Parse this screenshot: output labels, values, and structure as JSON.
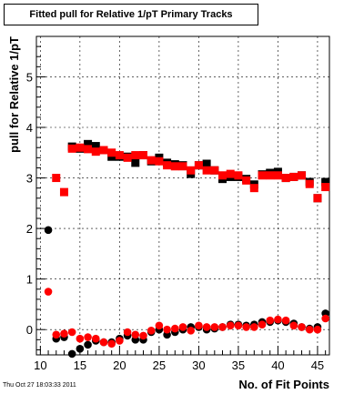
{
  "chart_data": {
    "type": "scatter",
    "title": "Fitted pull for Relative 1/pT Primary Tracks",
    "xlabel": "No. of Fit Points",
    "ylabel": "pull for Relative 1/pT",
    "xlim": [
      9.5,
      46.5
    ],
    "ylim": [
      -0.5,
      5.8
    ],
    "x_ticks": [
      10,
      15,
      20,
      25,
      30,
      35,
      40,
      45
    ],
    "y_ticks": [
      0,
      1,
      2,
      3,
      4,
      5
    ],
    "grid": true,
    "series": [
      {
        "color": "#000000",
        "marker": "square",
        "x": [
          14,
          15,
          16,
          17,
          18,
          19,
          20,
          21,
          22,
          23,
          24,
          25,
          26,
          27,
          28,
          29,
          30,
          31,
          32,
          33,
          34,
          35,
          36,
          37,
          38,
          39,
          40,
          41,
          42,
          43,
          44,
          45,
          46
        ],
        "values": [
          3.62,
          3.58,
          3.67,
          3.63,
          3.55,
          3.42,
          3.42,
          3.42,
          3.3,
          3.45,
          3.33,
          3.4,
          3.3,
          3.27,
          3.25,
          3.08,
          3.25,
          3.28,
          3.15,
          2.98,
          3.02,
          3.02,
          2.98,
          2.87,
          3.07,
          3.1,
          3.12,
          3.0,
          3.02,
          3.05,
          2.92,
          2.6,
          2.92
        ]
      },
      {
        "color": "#ff0000",
        "marker": "square",
        "x": [
          12,
          13,
          14,
          15,
          16,
          17,
          18,
          19,
          20,
          21,
          22,
          23,
          24,
          25,
          26,
          27,
          28,
          29,
          30,
          31,
          32,
          33,
          34,
          35,
          36,
          37,
          38,
          39,
          40,
          41,
          42,
          43,
          44,
          45,
          46
        ],
        "values": [
          3.0,
          2.72,
          3.58,
          3.6,
          3.57,
          3.52,
          3.55,
          3.5,
          3.45,
          3.4,
          3.45,
          3.45,
          3.35,
          3.33,
          3.25,
          3.23,
          3.23,
          3.15,
          3.25,
          3.15,
          3.15,
          3.05,
          3.08,
          3.05,
          2.95,
          2.8,
          3.05,
          3.05,
          3.05,
          3.0,
          3.02,
          3.05,
          2.88,
          2.6,
          2.82
        ]
      },
      {
        "color": "#000000",
        "marker": "circle",
        "x": [
          11,
          12,
          13,
          14,
          15,
          16,
          17,
          18,
          19,
          20,
          21,
          22,
          23,
          24,
          25,
          26,
          27,
          28,
          29,
          30,
          31,
          32,
          33,
          34,
          35,
          36,
          37,
          38,
          39,
          40,
          41,
          42,
          43,
          44,
          45,
          46
        ],
        "values": [
          1.97,
          -0.18,
          -0.15,
          -0.48,
          -0.38,
          -0.3,
          -0.22,
          -0.25,
          -0.25,
          -0.18,
          -0.12,
          -0.2,
          -0.2,
          -0.05,
          0.0,
          -0.1,
          -0.05,
          0.0,
          0.05,
          0.05,
          0.0,
          0.02,
          0.05,
          0.1,
          0.1,
          0.08,
          0.1,
          0.15,
          0.15,
          0.18,
          0.15,
          0.12,
          0.05,
          0.02,
          0.05,
          0.32
        ]
      },
      {
        "color": "#ff0000",
        "marker": "circle",
        "x": [
          11,
          12,
          13,
          14,
          15,
          16,
          17,
          18,
          19,
          20,
          21,
          22,
          23,
          24,
          25,
          26,
          27,
          28,
          29,
          30,
          31,
          32,
          33,
          34,
          35,
          36,
          37,
          38,
          39,
          40,
          41,
          42,
          43,
          44,
          45,
          46
        ],
        "values": [
          0.75,
          -0.1,
          -0.08,
          -0.05,
          -0.18,
          -0.15,
          -0.18,
          -0.25,
          -0.28,
          -0.22,
          -0.05,
          -0.1,
          -0.12,
          -0.02,
          0.08,
          0.0,
          0.02,
          0.05,
          -0.02,
          0.08,
          0.05,
          0.05,
          0.05,
          0.08,
          0.08,
          0.05,
          0.05,
          0.1,
          0.18,
          0.2,
          0.18,
          0.08,
          0.05,
          0.0,
          0.0,
          0.22
        ]
      }
    ]
  },
  "timestamp": "Thu Oct 27 18:03:33 2011"
}
